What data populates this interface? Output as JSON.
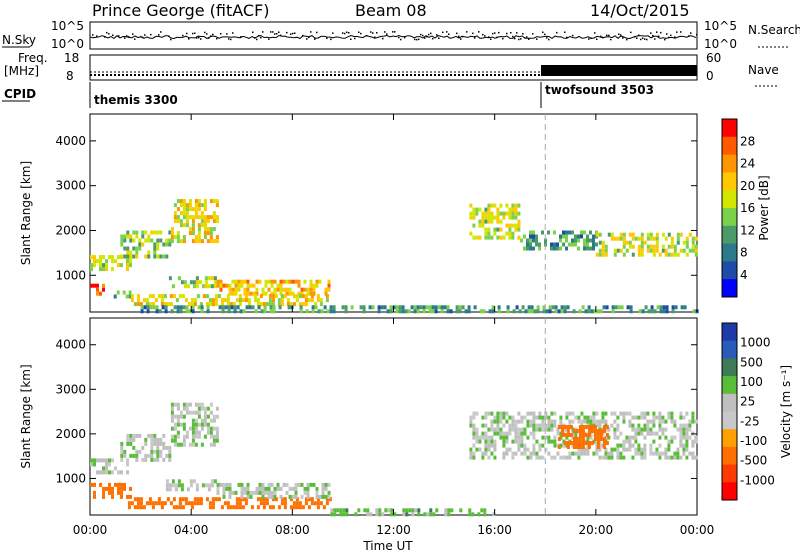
{
  "header": {
    "station": "Prince George (fitACF)",
    "beam": "Beam 08",
    "date": "14/Oct/2015"
  },
  "strip_labels": {
    "nsky": "N.Sky",
    "nsearch": "N.Search",
    "freq": "Freq.",
    "mhz": "[MHz]",
    "nave": "Nave",
    "cpid": "CPID",
    "nsky_ticks": [
      "10^5",
      "10^0"
    ],
    "nsearch_ticks": [
      "10^5",
      "10^0"
    ],
    "freq_ticks": [
      "18",
      "8"
    ],
    "nave_ticks": [
      "60",
      "0"
    ]
  },
  "cpid_modes": [
    {
      "name": "themis 3300",
      "start_hour": 0
    },
    {
      "name": "twofsound 3503",
      "start_hour": 18
    }
  ],
  "chart_data": [
    {
      "type": "heatmap",
      "title": "",
      "xlabel": "Time UT",
      "ylabel": "Slant Range [km]",
      "x_ticks": [
        "00:00",
        "04:00",
        "08:00",
        "12:00",
        "16:00",
        "20:00",
        "00:00"
      ],
      "xlim_hours": [
        0,
        24
      ],
      "ylim": [
        180,
        4600
      ],
      "y_ticks": [
        1000,
        2000,
        3000,
        4000
      ],
      "colorbar": {
        "label": "Power [dB]",
        "ticks": [
          "28",
          "24",
          "20",
          "16",
          "12",
          "8",
          "4"
        ],
        "colors": [
          "#ff0000",
          "#ff5a00",
          "#ff9500",
          "#ffc800",
          "#d2e600",
          "#7ad24a",
          "#4a9a6a",
          "#2a7a8a",
          "#1e4aa8",
          "#0000ff"
        ]
      },
      "echo_bands": [
        {
          "t": [
            0.0,
            0.5
          ],
          "r": [
            560,
            900
          ],
          "value": 26
        },
        {
          "t": [
            0.0,
            1.6
          ],
          "r": [
            1150,
            1450
          ],
          "value": 16
        },
        {
          "t": [
            0.7,
            1.6
          ],
          "r": [
            560,
            660
          ],
          "value": 12
        },
        {
          "t": [
            1.2,
            3.2
          ],
          "r": [
            1450,
            2000
          ],
          "value": 14
        },
        {
          "t": [
            3.2,
            5.0
          ],
          "r": [
            1800,
            2700
          ],
          "value": 18
        },
        {
          "t": [
            3.0,
            5.0
          ],
          "r": [
            780,
            980
          ],
          "value": 14
        },
        {
          "t": [
            5.0,
            9.5
          ],
          "r": [
            600,
            900
          ],
          "value": 20
        },
        {
          "t": [
            1.5,
            9.5
          ],
          "r": [
            330,
            580
          ],
          "value": 18
        },
        {
          "t": [
            2.0,
            24.0
          ],
          "r": [
            180,
            330
          ],
          "value": 10
        },
        {
          "t": [
            15.0,
            17.0
          ],
          "r": [
            1800,
            2600
          ],
          "value": 16
        },
        {
          "t": [
            17.0,
            20.0
          ],
          "r": [
            1600,
            2000
          ],
          "value": 10
        },
        {
          "t": [
            20.0,
            24.0
          ],
          "r": [
            1500,
            1950
          ],
          "value": 16
        }
      ]
    },
    {
      "type": "heatmap",
      "title": "",
      "xlabel": "Time UT",
      "ylabel": "Slant Range [km]",
      "x_ticks": [
        "00:00",
        "04:00",
        "08:00",
        "12:00",
        "16:00",
        "20:00",
        "00:00"
      ],
      "xlim_hours": [
        0,
        24
      ],
      "ylim": [
        180,
        4600
      ],
      "y_ticks": [
        1000,
        2000,
        3000,
        4000
      ],
      "colorbar": {
        "label": "Velocity [m s⁻¹]",
        "ticks": [
          "1000",
          "500",
          "100",
          "25",
          "-25",
          "-100",
          "-500",
          "-1000"
        ],
        "colors": [
          "#1e3aa8",
          "#2a5aba",
          "#3d7a55",
          "#5abd3a",
          "#bfbfbf",
          "#c8c8c8",
          "#ffa000",
          "#ff7000",
          "#ff3a00",
          "#ff0000"
        ]
      },
      "echo_bands": [
        {
          "t": [
            0.0,
            1.6
          ],
          "r": [
            560,
            900
          ],
          "value": -400
        },
        {
          "t": [
            0.0,
            1.6
          ],
          "r": [
            1150,
            1450
          ],
          "value": 0
        },
        {
          "t": [
            1.2,
            3.2
          ],
          "r": [
            1450,
            2000
          ],
          "value": 0
        },
        {
          "t": [
            3.2,
            5.0
          ],
          "r": [
            1800,
            2700
          ],
          "value": 0
        },
        {
          "t": [
            3.0,
            5.0
          ],
          "r": [
            780,
            980
          ],
          "value": 0
        },
        {
          "t": [
            1.5,
            9.5
          ],
          "r": [
            330,
            580
          ],
          "value": -300
        },
        {
          "t": [
            5.0,
            9.5
          ],
          "r": [
            600,
            900
          ],
          "value": 0
        },
        {
          "t": [
            9.5,
            16.0
          ],
          "r": [
            180,
            330
          ],
          "value": 60
        },
        {
          "t": [
            15.0,
            24.0
          ],
          "r": [
            1500,
            2500
          ],
          "value": 0
        },
        {
          "t": [
            18.5,
            20.5
          ],
          "r": [
            1700,
            2200
          ],
          "value": -300
        }
      ]
    }
  ]
}
